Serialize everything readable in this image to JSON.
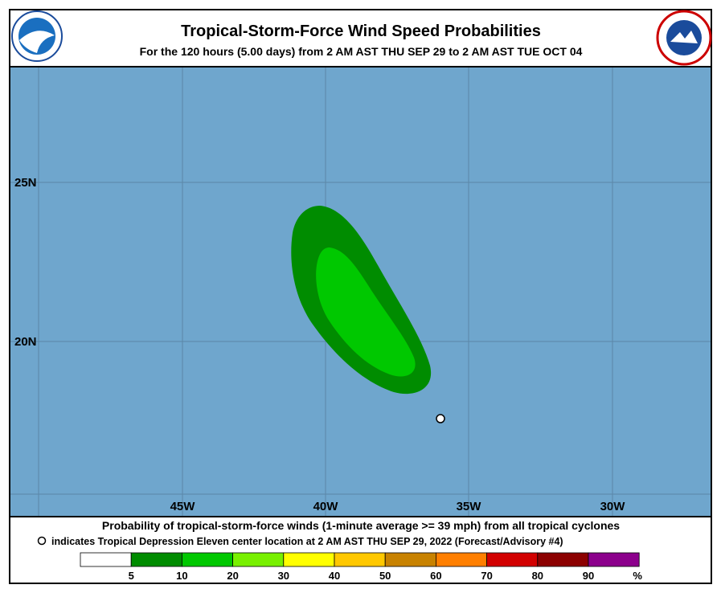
{
  "header": {
    "title": "Tropical-Storm-Force Wind Speed Probabilities",
    "subtitle": "For the 120 hours (5.00 days) from 2 AM AST THU SEP 29 to 2 AM AST TUE OCT 04"
  },
  "map": {
    "lon_labels": [
      "45W",
      "40W",
      "35W",
      "30W"
    ],
    "lat_labels": [
      "25N",
      "20N"
    ]
  },
  "footer": {
    "caption": "Probability of tropical-storm-force winds (1-minute average >= 39 mph) from all tropical cyclones",
    "note": "indicates Tropical Depression Eleven center location at 2 AM AST THU SEP 29, 2022 (Forecast/Advisory #4)",
    "scale": [
      5,
      10,
      20,
      30,
      40,
      50,
      60,
      70,
      80,
      90
    ],
    "unit": "%"
  }
}
